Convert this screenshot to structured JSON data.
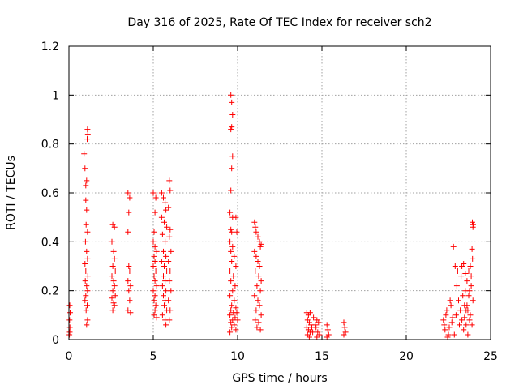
{
  "chart_data": {
    "type": "scatter",
    "title": "Day 316 of 2025, Rate Of TEC Index for receiver sch2",
    "xlabel": "GPS time / hours",
    "ylabel": "ROTI / TECUs",
    "xlim": [
      0,
      25
    ],
    "ylim": [
      0,
      1.2
    ],
    "x_ticks": [
      0,
      5,
      10,
      15,
      20,
      25
    ],
    "x_tick_labels": [
      "0",
      "5",
      "10",
      "15",
      "20",
      "25"
    ],
    "y_ticks": [
      0,
      0.2,
      0.4,
      0.6,
      0.8,
      1,
      1.2
    ],
    "y_tick_labels": [
      "0",
      "0.2",
      "0.4",
      "0.6",
      "0.8",
      "1",
      "1.2"
    ],
    "grid": true,
    "marker": "+",
    "marker_color": "#ff0000",
    "series": [
      {
        "name": "sch2",
        "points": [
          [
            0.03,
            0.02
          ],
          [
            0.05,
            0.03
          ],
          [
            0.06,
            0.05
          ],
          [
            0.04,
            0.08
          ],
          [
            0.07,
            0.11
          ],
          [
            0.05,
            0.14
          ],
          [
            0.9,
            0.76
          ],
          [
            0.95,
            0.7
          ],
          [
            1.0,
            0.63
          ],
          [
            1.05,
            0.65
          ],
          [
            1.1,
            0.86
          ],
          [
            1.12,
            0.84
          ],
          [
            1.08,
            0.82
          ],
          [
            1.0,
            0.57
          ],
          [
            1.05,
            0.53
          ],
          [
            1.02,
            0.47
          ],
          [
            1.1,
            0.44
          ],
          [
            0.98,
            0.4
          ],
          [
            1.05,
            0.36
          ],
          [
            1.1,
            0.33
          ],
          [
            0.95,
            0.31
          ],
          [
            1.0,
            0.28
          ],
          [
            1.12,
            0.26
          ],
          [
            0.97,
            0.24
          ],
          [
            1.05,
            0.22
          ],
          [
            1.1,
            0.2
          ],
          [
            1.0,
            0.18
          ],
          [
            0.95,
            0.16
          ],
          [
            1.08,
            0.14
          ],
          [
            1.02,
            0.12
          ],
          [
            1.1,
            0.08
          ],
          [
            1.05,
            0.06
          ],
          [
            2.6,
            0.47
          ],
          [
            2.7,
            0.46
          ],
          [
            2.55,
            0.4
          ],
          [
            2.65,
            0.36
          ],
          [
            2.7,
            0.33
          ],
          [
            2.6,
            0.3
          ],
          [
            2.75,
            0.28
          ],
          [
            2.55,
            0.26
          ],
          [
            2.65,
            0.24
          ],
          [
            2.7,
            0.22
          ],
          [
            2.6,
            0.2
          ],
          [
            2.75,
            0.18
          ],
          [
            2.55,
            0.17
          ],
          [
            2.65,
            0.15
          ],
          [
            2.7,
            0.14
          ],
          [
            2.6,
            0.12
          ],
          [
            3.5,
            0.6
          ],
          [
            3.6,
            0.58
          ],
          [
            3.55,
            0.52
          ],
          [
            3.5,
            0.44
          ],
          [
            3.55,
            0.3
          ],
          [
            3.6,
            0.28
          ],
          [
            3.5,
            0.24
          ],
          [
            3.65,
            0.22
          ],
          [
            3.55,
            0.2
          ],
          [
            3.6,
            0.16
          ],
          [
            3.5,
            0.12
          ],
          [
            3.65,
            0.11
          ],
          [
            5.0,
            0.6
          ],
          [
            5.15,
            0.58
          ],
          [
            5.1,
            0.52
          ],
          [
            5.05,
            0.44
          ],
          [
            5.0,
            0.4
          ],
          [
            5.1,
            0.38
          ],
          [
            5.2,
            0.36
          ],
          [
            5.05,
            0.34
          ],
          [
            5.1,
            0.32
          ],
          [
            5.0,
            0.3
          ],
          [
            5.15,
            0.28
          ],
          [
            5.05,
            0.26
          ],
          [
            5.1,
            0.24
          ],
          [
            5.2,
            0.22
          ],
          [
            5.0,
            0.2
          ],
          [
            5.1,
            0.18
          ],
          [
            5.05,
            0.16
          ],
          [
            5.15,
            0.14
          ],
          [
            5.1,
            0.12
          ],
          [
            5.05,
            0.1
          ],
          [
            5.2,
            0.09
          ],
          [
            5.5,
            0.6
          ],
          [
            5.6,
            0.58
          ],
          [
            5.7,
            0.56
          ],
          [
            5.75,
            0.53
          ],
          [
            5.5,
            0.5
          ],
          [
            5.65,
            0.48
          ],
          [
            5.8,
            0.46
          ],
          [
            5.55,
            0.43
          ],
          [
            5.7,
            0.4
          ],
          [
            5.6,
            0.36
          ],
          [
            5.75,
            0.34
          ],
          [
            5.5,
            0.32
          ],
          [
            5.65,
            0.3
          ],
          [
            5.8,
            0.28
          ],
          [
            5.6,
            0.26
          ],
          [
            5.7,
            0.24
          ],
          [
            5.55,
            0.22
          ],
          [
            5.75,
            0.2
          ],
          [
            5.6,
            0.18
          ],
          [
            5.7,
            0.16
          ],
          [
            5.65,
            0.14
          ],
          [
            5.8,
            0.12
          ],
          [
            5.55,
            0.1
          ],
          [
            5.7,
            0.08
          ],
          [
            5.75,
            0.06
          ],
          [
            5.95,
            0.65
          ],
          [
            6.0,
            0.61
          ],
          [
            5.9,
            0.54
          ],
          [
            6.0,
            0.45
          ],
          [
            5.95,
            0.42
          ],
          [
            6.05,
            0.36
          ],
          [
            5.9,
            0.32
          ],
          [
            6.0,
            0.28
          ],
          [
            5.95,
            0.24
          ],
          [
            6.05,
            0.2
          ],
          [
            5.9,
            0.16
          ],
          [
            6.0,
            0.12
          ],
          [
            5.95,
            0.08
          ],
          [
            9.6,
            1.0
          ],
          [
            9.65,
            0.97
          ],
          [
            9.7,
            0.92
          ],
          [
            9.65,
            0.87
          ],
          [
            9.6,
            0.86
          ],
          [
            9.7,
            0.75
          ],
          [
            9.65,
            0.7
          ],
          [
            9.6,
            0.61
          ],
          [
            9.55,
            0.52
          ],
          [
            9.7,
            0.5
          ],
          [
            9.6,
            0.45
          ],
          [
            9.65,
            0.44
          ],
          [
            9.55,
            0.4
          ],
          [
            9.7,
            0.38
          ],
          [
            9.6,
            0.36
          ],
          [
            9.8,
            0.34
          ],
          [
            9.65,
            0.32
          ],
          [
            9.9,
            0.3
          ],
          [
            9.55,
            0.28
          ],
          [
            9.75,
            0.26
          ],
          [
            9.6,
            0.24
          ],
          [
            9.85,
            0.22
          ],
          [
            9.7,
            0.2
          ],
          [
            9.55,
            0.18
          ],
          [
            9.8,
            0.16
          ],
          [
            9.65,
            0.14
          ],
          [
            9.9,
            0.13
          ],
          [
            9.6,
            0.12
          ],
          [
            9.75,
            0.11
          ],
          [
            9.55,
            0.1
          ],
          [
            9.85,
            0.09
          ],
          [
            9.7,
            0.08
          ],
          [
            9.6,
            0.07
          ],
          [
            9.8,
            0.06
          ],
          [
            9.65,
            0.05
          ],
          [
            9.9,
            0.04
          ],
          [
            9.55,
            0.03
          ],
          [
            9.95,
            0.11
          ],
          [
            10.0,
            0.08
          ],
          [
            9.95,
            0.44
          ],
          [
            9.9,
            0.5
          ],
          [
            11.0,
            0.48
          ],
          [
            11.05,
            0.46
          ],
          [
            11.1,
            0.44
          ],
          [
            11.2,
            0.42
          ],
          [
            11.3,
            0.4
          ],
          [
            11.4,
            0.39
          ],
          [
            11.35,
            0.38
          ],
          [
            11.0,
            0.36
          ],
          [
            11.1,
            0.34
          ],
          [
            11.2,
            0.32
          ],
          [
            11.3,
            0.3
          ],
          [
            11.05,
            0.28
          ],
          [
            11.25,
            0.26
          ],
          [
            11.4,
            0.24
          ],
          [
            11.15,
            0.22
          ],
          [
            11.35,
            0.2
          ],
          [
            11.0,
            0.18
          ],
          [
            11.2,
            0.16
          ],
          [
            11.3,
            0.14
          ],
          [
            11.1,
            0.12
          ],
          [
            11.4,
            0.1
          ],
          [
            11.05,
            0.08
          ],
          [
            11.25,
            0.07
          ],
          [
            11.15,
            0.05
          ],
          [
            11.35,
            0.04
          ],
          [
            14.1,
            0.11
          ],
          [
            14.2,
            0.1
          ],
          [
            14.3,
            0.11
          ],
          [
            14.15,
            0.08
          ],
          [
            14.25,
            0.07
          ],
          [
            14.35,
            0.06
          ],
          [
            14.1,
            0.05
          ],
          [
            14.2,
            0.04
          ],
          [
            14.3,
            0.03
          ],
          [
            14.15,
            0.02
          ],
          [
            14.25,
            0.01
          ],
          [
            14.4,
            0.05
          ],
          [
            14.5,
            0.09
          ],
          [
            14.45,
            0.03
          ],
          [
            14.6,
            0.06
          ],
          [
            14.7,
            0.08
          ],
          [
            14.8,
            0.07
          ],
          [
            14.65,
            0.05
          ],
          [
            14.75,
            0.03
          ],
          [
            14.85,
            0.02
          ],
          [
            14.7,
            0.01
          ],
          [
            15.3,
            0.06
          ],
          [
            15.35,
            0.04
          ],
          [
            15.4,
            0.02
          ],
          [
            15.3,
            0.01
          ],
          [
            16.3,
            0.07
          ],
          [
            16.35,
            0.05
          ],
          [
            16.4,
            0.03
          ],
          [
            16.3,
            0.02
          ],
          [
            22.2,
            0.08
          ],
          [
            22.3,
            0.04
          ],
          [
            22.4,
            0.12
          ],
          [
            22.5,
            0.02
          ],
          [
            22.6,
            0.16
          ],
          [
            22.7,
            0.07
          ],
          [
            22.35,
            0.1
          ],
          [
            22.55,
            0.05
          ],
          [
            22.65,
            0.14
          ],
          [
            22.45,
            0.01
          ],
          [
            22.75,
            0.09
          ],
          [
            22.25,
            0.06
          ],
          [
            22.8,
            0.38
          ],
          [
            22.9,
            0.3
          ],
          [
            23.0,
            0.22
          ],
          [
            23.1,
            0.16
          ],
          [
            23.2,
            0.12
          ],
          [
            23.3,
            0.08
          ],
          [
            23.4,
            0.04
          ],
          [
            23.5,
            0.2
          ],
          [
            23.6,
            0.24
          ],
          [
            23.7,
            0.18
          ],
          [
            23.8,
            0.1
          ],
          [
            23.9,
            0.06
          ],
          [
            22.85,
            0.02
          ],
          [
            23.05,
            0.28
          ],
          [
            23.25,
            0.26
          ],
          [
            23.45,
            0.14
          ],
          [
            23.65,
            0.02
          ],
          [
            23.85,
            0.22
          ],
          [
            22.95,
            0.1
          ],
          [
            23.15,
            0.06
          ],
          [
            23.35,
            0.18
          ],
          [
            23.55,
            0.12
          ],
          [
            23.75,
            0.08
          ],
          [
            23.95,
            0.16
          ],
          [
            23.3,
            0.3
          ],
          [
            23.4,
            0.31
          ],
          [
            23.5,
            0.27
          ],
          [
            23.6,
            0.14
          ],
          [
            23.7,
            0.28
          ],
          [
            23.8,
            0.3
          ],
          [
            23.9,
            0.37
          ],
          [
            23.95,
            0.46
          ],
          [
            23.92,
            0.48
          ],
          [
            23.96,
            0.47
          ],
          [
            23.93,
            0.33
          ],
          [
            23.85,
            0.26
          ],
          [
            23.75,
            0.2
          ],
          [
            23.65,
            0.12
          ],
          [
            23.55,
            0.06
          ],
          [
            23.45,
            0.09
          ]
        ]
      }
    ]
  }
}
